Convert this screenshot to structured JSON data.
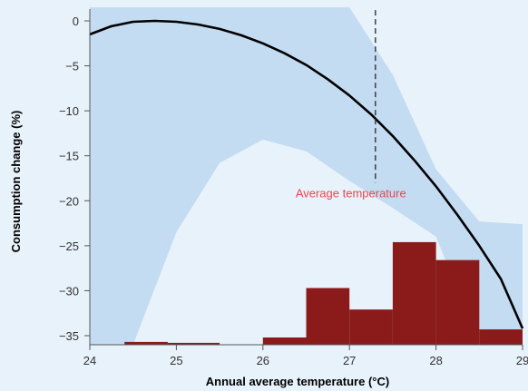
{
  "chart_data": {
    "type": "line",
    "xlabel": "Annual average temperature (°C)",
    "ylabel": "Consumption change (%)",
    "xlim": [
      24,
      29
    ],
    "ylim": [
      -36,
      1.5
    ],
    "x_ticks": [
      24,
      25,
      26,
      27,
      28,
      29
    ],
    "y_ticks": [
      0,
      -5,
      -10,
      -15,
      -20,
      -25,
      -30,
      -35
    ],
    "x_tick_labels": [
      "24",
      "25",
      "26",
      "27",
      "28",
      "29"
    ],
    "y_tick_labels": [
      "0",
      "−5",
      "−10",
      "−15",
      "−20",
      "−25",
      "−30",
      "−35"
    ],
    "grid": false,
    "series": [
      {
        "kind": "line",
        "x": [
          24.0,
          24.25,
          24.5,
          24.75,
          25.0,
          25.25,
          25.5,
          25.75,
          26.0,
          26.25,
          26.5,
          26.75,
          27.0,
          27.25,
          27.5,
          27.75,
          28.0,
          28.25,
          28.5,
          28.75,
          29.0
        ],
        "y": [
          -1.5,
          -0.6,
          -0.1,
          0.0,
          -0.1,
          -0.4,
          -0.9,
          -1.6,
          -2.5,
          -3.6,
          -4.9,
          -6.5,
          -8.3,
          -10.4,
          -12.8,
          -15.5,
          -18.4,
          -21.6,
          -25.0,
          -28.7,
          -34.2
        ]
      },
      {
        "kind": "band",
        "x": [
          24.0,
          24.5,
          25.0,
          25.5,
          26.0,
          26.5,
          27.0,
          27.5,
          28.0,
          28.5,
          29.0
        ],
        "upper": [
          1.5,
          1.5,
          1.5,
          1.5,
          1.5,
          1.5,
          1.5,
          -6.0,
          -16.5,
          -22.3,
          -22.6
        ],
        "lower": [
          -36.0,
          -36.0,
          -23.5,
          -15.8,
          -13.2,
          -14.5,
          -17.8,
          -20.8,
          -24.0,
          -36.0,
          -36.0
        ]
      }
    ],
    "histogram": {
      "bins": [
        [
          24.4,
          24.9
        ],
        [
          24.9,
          25.5
        ],
        [
          26.0,
          26.5
        ],
        [
          26.5,
          27.0
        ],
        [
          27.0,
          27.5
        ],
        [
          27.5,
          28.0
        ],
        [
          28.0,
          28.5
        ],
        [
          28.5,
          29.0
        ]
      ],
      "tops": [
        -35.7,
        -35.8,
        -35.2,
        -29.7,
        -32.1,
        -24.6,
        -26.6,
        -34.3
      ]
    },
    "reference_line": {
      "x": 27.3,
      "y_range": [
        -18.0,
        1.2
      ],
      "label": "Average temperature",
      "label_y": -19.2
    },
    "colors": {
      "background": "#e8f2fa",
      "band": "#c4dcf1",
      "line": "#000000",
      "bars": "#8b1a1a",
      "annotation": "#e8474e",
      "axis": "#555555"
    }
  }
}
